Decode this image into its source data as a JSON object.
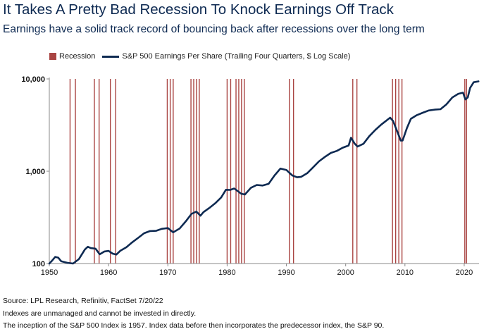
{
  "title": "It Takes A Pretty Bad Recession To Knock Earnings Off Track",
  "subtitle": "Earnings have a solid track record of bouncing back after recessions over the long term",
  "footer": {
    "source": "Source: LPL Research, Refinitiv, FactSet  7/20/22",
    "note1": "Indexes are unmanaged and cannot be invested in directly.",
    "note2": "The inception of the S&P 500 Index is 1957. Index data before then incorporates the predecessor index, the S&P 90."
  },
  "colors": {
    "line": "#0e2a52",
    "recession": "#a94442",
    "axis": "#888888"
  },
  "chart_data": {
    "type": "line",
    "yscale": "log",
    "xlim": [
      1950,
      2022.5
    ],
    "ylim": [
      100,
      10000
    ],
    "x_ticks": [
      1950,
      1960,
      1970,
      1980,
      1990,
      2000,
      2010,
      2020
    ],
    "y_ticks": [
      {
        "value": 100,
        "label": "100"
      },
      {
        "value": 1000,
        "label": "1,000"
      },
      {
        "value": 10000,
        "label": "10,000"
      }
    ],
    "legend": [
      {
        "name": "Recession",
        "kind": "rect"
      },
      {
        "name": "S&P 500 Earnings Per Share (Trailing Four Quarters, $ Log Scale)",
        "kind": "line"
      }
    ],
    "legend_position": "top-left",
    "grid": false,
    "recessions": [
      {
        "start": 1953.5,
        "end": 1954.4
      },
      {
        "start": 1957.6,
        "end": 1958.4
      },
      {
        "start": 1960.3,
        "end": 1961.2
      },
      {
        "start": 1969.9,
        "end": 1970.9
      },
      {
        "start": 1973.9,
        "end": 1975.3
      },
      {
        "start": 1980.0,
        "end": 1980.6
      },
      {
        "start": 1981.5,
        "end": 1982.9
      },
      {
        "start": 1990.5,
        "end": 1991.2
      },
      {
        "start": 2001.2,
        "end": 2001.9
      },
      {
        "start": 2007.9,
        "end": 2009.5
      },
      {
        "start": 2020.1,
        "end": 2020.4
      }
    ],
    "series": [
      {
        "name": "S&P 500 Earnings Per Share (Trailing Four Quarters, $ Log Scale)",
        "points": [
          [
            1950,
            100
          ],
          [
            1950.5,
            108
          ],
          [
            1951,
            118
          ],
          [
            1951.5,
            116
          ],
          [
            1952,
            106
          ],
          [
            1953,
            102
          ],
          [
            1954,
            100
          ],
          [
            1955,
            112
          ],
          [
            1956,
            142
          ],
          [
            1956.5,
            152
          ],
          [
            1957,
            147
          ],
          [
            1957.8,
            145
          ],
          [
            1958.5,
            126
          ],
          [
            1959.3,
            135
          ],
          [
            1960,
            137
          ],
          [
            1960.7,
            128
          ],
          [
            1961.3,
            125
          ],
          [
            1962,
            138
          ],
          [
            1963,
            150
          ],
          [
            1964,
            170
          ],
          [
            1965,
            190
          ],
          [
            1966,
            213
          ],
          [
            1967,
            225
          ],
          [
            1968,
            226
          ],
          [
            1969,
            238
          ],
          [
            1970,
            242
          ],
          [
            1970.9,
            218
          ],
          [
            1972,
            240
          ],
          [
            1973,
            285
          ],
          [
            1974,
            345
          ],
          [
            1974.8,
            365
          ],
          [
            1975.5,
            330
          ],
          [
            1976,
            360
          ],
          [
            1977,
            400
          ],
          [
            1978,
            450
          ],
          [
            1979,
            520
          ],
          [
            1979.8,
            630
          ],
          [
            1980.5,
            628
          ],
          [
            1981.2,
            650
          ],
          [
            1982.4,
            570
          ],
          [
            1983,
            560
          ],
          [
            1984,
            660
          ],
          [
            1985,
            710
          ],
          [
            1986,
            700
          ],
          [
            1987,
            730
          ],
          [
            1988,
            900
          ],
          [
            1989,
            1070
          ],
          [
            1990,
            1030
          ],
          [
            1991,
            900
          ],
          [
            1991.8,
            860
          ],
          [
            1992.5,
            870
          ],
          [
            1993.5,
            950
          ],
          [
            1994.5,
            1100
          ],
          [
            1995.5,
            1280
          ],
          [
            1996.5,
            1430
          ],
          [
            1997.5,
            1580
          ],
          [
            1998.5,
            1660
          ],
          [
            1999.5,
            1800
          ],
          [
            2000.5,
            1900
          ],
          [
            2000.9,
            2310
          ],
          [
            2001.5,
            2000
          ],
          [
            2002,
            1850
          ],
          [
            2003,
            1980
          ],
          [
            2004,
            2400
          ],
          [
            2005,
            2800
          ],
          [
            2006,
            3200
          ],
          [
            2007.5,
            3800
          ],
          [
            2008,
            3500
          ],
          [
            2008.8,
            2600
          ],
          [
            2009.3,
            2150
          ],
          [
            2009.6,
            2150
          ],
          [
            2010.3,
            2900
          ],
          [
            2011,
            3700
          ],
          [
            2012,
            4050
          ],
          [
            2013,
            4300
          ],
          [
            2014,
            4550
          ],
          [
            2015,
            4650
          ],
          [
            2016,
            4700
          ],
          [
            2017,
            5300
          ],
          [
            2018,
            6300
          ],
          [
            2019,
            6900
          ],
          [
            2019.8,
            7100
          ],
          [
            2020.2,
            6000
          ],
          [
            2020.6,
            6300
          ],
          [
            2021,
            8000
          ],
          [
            2021.6,
            9200
          ],
          [
            2022.4,
            9400
          ]
        ]
      }
    ]
  }
}
